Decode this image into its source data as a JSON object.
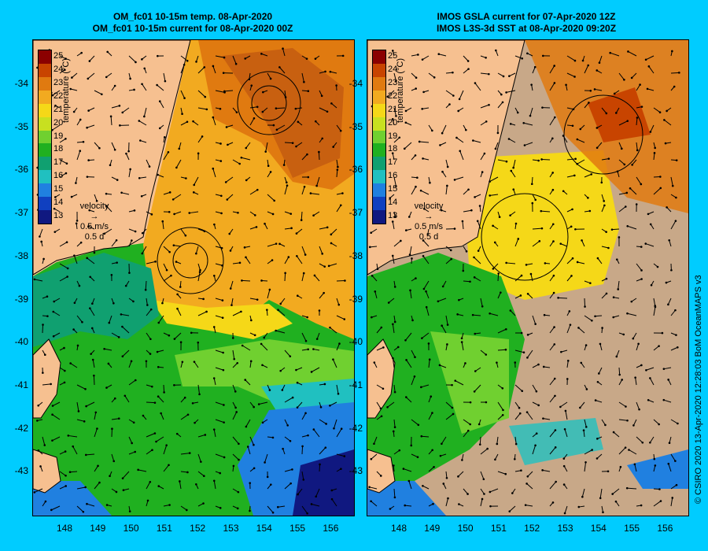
{
  "left_panel": {
    "title_line1": "OM_fc01 10-15m temp. 08-Apr-2020",
    "title_line2": "OM_fc01 10-15m current for 08-Apr-2020 00Z"
  },
  "right_panel": {
    "title_line1": "IMOS GSLA current for 07-Apr-2020 12Z",
    "title_line2": "IMOS L3S-3d SST at 08-Apr-2020 09:20Z"
  },
  "colorbar": {
    "title": "temperature (°C)",
    "ticks": [
      "25",
      "24",
      "23",
      "22",
      "21",
      "20",
      "19",
      "18",
      "17",
      "16",
      "15",
      "14",
      "13"
    ],
    "colors": [
      "#8b0000",
      "#c84400",
      "#e07a10",
      "#f2aa20",
      "#f5d818",
      "#c8e020",
      "#70d030",
      "#20b020",
      "#10a070",
      "#20c0c0",
      "#2080e0",
      "#1040c0",
      "#101880"
    ]
  },
  "velocity_legend": {
    "label": "velocity",
    "speed": "0.5 m/s",
    "duration": "0.5 d"
  },
  "y_axis_labels": [
    "-34",
    "-35",
    "-36",
    "-37",
    "-38",
    "-39",
    "-40",
    "-41",
    "-42",
    "-43"
  ],
  "x_axis_labels": [
    "148",
    "149",
    "150",
    "151",
    "152",
    "153",
    "154",
    "155",
    "156"
  ],
  "credit": "© CSIRO 2020   13-Apr-2020 12:28:03 BoM OceanMAPS v3",
  "colors": {
    "background": "#00ccff",
    "land": "#f6c090",
    "no_data": "#c8a888"
  }
}
